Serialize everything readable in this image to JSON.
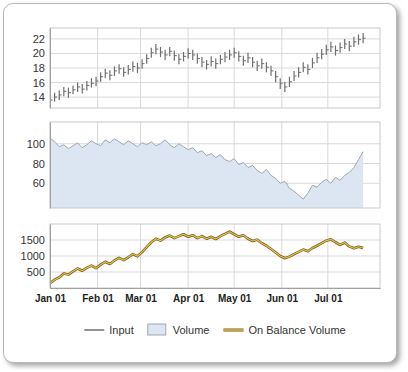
{
  "chart_data": [
    {
      "type": "stock",
      "x": [
        0,
        3,
        6,
        9,
        12,
        15,
        18,
        21,
        24,
        27,
        30,
        33,
        36,
        39,
        42,
        45,
        48,
        51,
        54,
        57,
        60,
        63,
        66,
        69,
        72,
        75,
        78,
        81,
        84,
        87,
        90,
        93,
        96,
        99,
        102,
        105,
        108,
        111,
        114,
        117,
        120,
        123,
        126,
        129,
        132,
        135,
        138,
        141,
        144,
        147,
        150,
        153,
        156,
        159,
        162,
        165,
        168,
        171,
        174,
        177,
        180,
        183,
        186,
        189,
        192,
        195,
        198,
        201,
        204
      ],
      "series": [
        {
          "name": "Input",
          "color": "#6e6e6e",
          "high": [
            14.2,
            14.6,
            14.9,
            15.4,
            15.3,
            15.6,
            16.0,
            15.8,
            16.2,
            16.6,
            16.8,
            17.4,
            17.9,
            17.7,
            18.2,
            18.5,
            18.1,
            18.4,
            18.9,
            18.7,
            19.2,
            19.9,
            20.8,
            21.3,
            20.9,
            20.5,
            20.9,
            20.4,
            19.9,
            20.2,
            20.7,
            20.5,
            20.0,
            19.5,
            19.1,
            19.6,
            19.3,
            19.8,
            20.2,
            20.5,
            20.8,
            20.3,
            19.7,
            20.1,
            19.5,
            19.0,
            19.3,
            18.8,
            18.3,
            17.6,
            16.6,
            16.1,
            16.8,
            17.6,
            18.1,
            18.8,
            18.5,
            19.4,
            20.1,
            20.6,
            21.2,
            21.6,
            21.1,
            21.5,
            22.0,
            21.7,
            22.3,
            22.6,
            22.8
          ],
          "low": [
            13.0,
            13.4,
            13.6,
            14.1,
            13.9,
            14.4,
            14.7,
            14.5,
            14.9,
            15.3,
            15.5,
            16.1,
            16.6,
            16.3,
            16.9,
            17.2,
            16.8,
            17.1,
            17.5,
            17.3,
            17.9,
            18.6,
            19.4,
            19.9,
            19.5,
            19.1,
            19.6,
            19.0,
            18.5,
            18.9,
            19.3,
            19.1,
            18.6,
            18.1,
            17.8,
            18.2,
            17.9,
            18.5,
            18.8,
            19.1,
            19.4,
            18.9,
            18.3,
            18.7,
            18.1,
            17.6,
            17.9,
            17.4,
            16.9,
            16.0,
            15.1,
            14.7,
            15.4,
            16.2,
            16.7,
            17.4,
            17.1,
            18.0,
            18.7,
            19.2,
            19.8,
            20.2,
            19.7,
            20.1,
            20.6,
            20.3,
            20.9,
            21.2,
            21.4
          ],
          "close": [
            13.6,
            14.0,
            14.3,
            14.8,
            14.6,
            15.0,
            15.4,
            15.1,
            15.6,
            15.9,
            16.2,
            16.8,
            17.3,
            17.0,
            17.6,
            17.9,
            17.4,
            17.8,
            18.2,
            18.0,
            18.6,
            19.3,
            20.1,
            20.6,
            20.2,
            19.8,
            20.3,
            19.7,
            19.2,
            19.6,
            20.0,
            19.8,
            19.3,
            18.8,
            18.5,
            18.9,
            18.6,
            19.2,
            19.5,
            19.8,
            20.1,
            19.6,
            19.0,
            19.4,
            18.8,
            18.3,
            18.6,
            18.1,
            17.6,
            16.8,
            15.9,
            15.4,
            16.1,
            16.9,
            17.4,
            18.1,
            17.8,
            18.7,
            19.4,
            19.9,
            20.5,
            20.9,
            20.4,
            20.8,
            21.3,
            21.0,
            21.6,
            21.9,
            22.1
          ]
        }
      ],
      "xlim": [
        0,
        215
      ],
      "xticks": [
        0,
        31,
        59,
        90,
        120,
        151,
        181
      ],
      "ylim": [
        12.5,
        23.5
      ],
      "yticks": [
        14,
        16,
        18,
        20,
        22
      ],
      "grid": true,
      "tick_labels": "y",
      "legend": "bottom"
    },
    {
      "type": "area",
      "x": [
        0,
        3,
        6,
        9,
        12,
        15,
        18,
        21,
        24,
        27,
        30,
        33,
        36,
        39,
        42,
        45,
        48,
        51,
        54,
        57,
        60,
        63,
        66,
        69,
        72,
        75,
        78,
        81,
        84,
        87,
        90,
        93,
        96,
        99,
        102,
        105,
        108,
        111,
        114,
        117,
        120,
        123,
        126,
        129,
        132,
        135,
        138,
        141,
        144,
        147,
        150,
        153,
        156,
        159,
        162,
        165,
        168,
        171,
        174,
        177,
        180,
        183,
        186,
        189,
        192,
        195,
        198,
        201,
        204
      ],
      "series": [
        {
          "name": "Volume",
          "color": "#dce6f2",
          "values": [
            106,
            102,
            97,
            99,
            95,
            98,
            101,
            96,
            99,
            103,
            100,
            98,
            104,
            101,
            105,
            102,
            99,
            103,
            100,
            97,
            101,
            99,
            102,
            98,
            100,
            104,
            99,
            96,
            100,
            97,
            94,
            96,
            91,
            93,
            88,
            90,
            86,
            89,
            84,
            82,
            85,
            79,
            81,
            76,
            78,
            73,
            70,
            74,
            68,
            65,
            60,
            62,
            55,
            52,
            48,
            44,
            50,
            58,
            56,
            61,
            64,
            60,
            66,
            63,
            68,
            71,
            76,
            84,
            92
          ]
        }
      ],
      "xlim": [
        0,
        215
      ],
      "xticks": [
        0,
        31,
        59,
        90,
        120,
        151,
        181
      ],
      "ylim": [
        35,
        122
      ],
      "yticks": [
        60,
        80,
        100
      ],
      "grid": true,
      "tick_labels": "y",
      "legend": "bottom"
    },
    {
      "type": "line",
      "x": [
        0,
        3,
        6,
        9,
        12,
        15,
        18,
        21,
        24,
        27,
        30,
        33,
        36,
        39,
        42,
        45,
        48,
        51,
        54,
        57,
        60,
        63,
        66,
        69,
        72,
        75,
        78,
        81,
        84,
        87,
        90,
        93,
        96,
        99,
        102,
        105,
        108,
        111,
        114,
        117,
        120,
        123,
        126,
        129,
        132,
        135,
        138,
        141,
        144,
        147,
        150,
        153,
        156,
        159,
        162,
        165,
        168,
        171,
        174,
        177,
        180,
        183,
        186,
        189,
        192,
        195,
        198,
        201,
        204
      ],
      "series": [
        {
          "name": "On Balance Volume",
          "color": "#efc13a",
          "values": [
            150,
            260,
            330,
            450,
            420,
            520,
            610,
            540,
            630,
            700,
            620,
            730,
            820,
            750,
            860,
            940,
            870,
            960,
            1060,
            990,
            1120,
            1280,
            1430,
            1540,
            1480,
            1580,
            1640,
            1560,
            1620,
            1680,
            1600,
            1650,
            1560,
            1620,
            1540,
            1600,
            1530,
            1620,
            1690,
            1760,
            1680,
            1600,
            1650,
            1540,
            1470,
            1510,
            1400,
            1320,
            1220,
            1110,
            1000,
            930,
            980,
            1060,
            1130,
            1200,
            1150,
            1250,
            1320,
            1400,
            1480,
            1520,
            1430,
            1350,
            1420,
            1300,
            1240,
            1290,
            1250
          ]
        }
      ],
      "xlim": [
        0,
        215
      ],
      "xticks": [
        {
          "value": 0,
          "label": "Jan 01"
        },
        {
          "value": 31,
          "label": "Feb 01"
        },
        {
          "value": 59,
          "label": "Mar 01"
        },
        {
          "value": 90,
          "label": "Apr 01"
        },
        {
          "value": 120,
          "label": "May 01"
        },
        {
          "value": 151,
          "label": "Jun 01"
        },
        {
          "value": 181,
          "label": "Jul 01"
        }
      ],
      "ylim": [
        0,
        2000
      ],
      "yticks": [
        500,
        1000,
        1500
      ],
      "grid": true,
      "legend": "bottom"
    }
  ]
}
